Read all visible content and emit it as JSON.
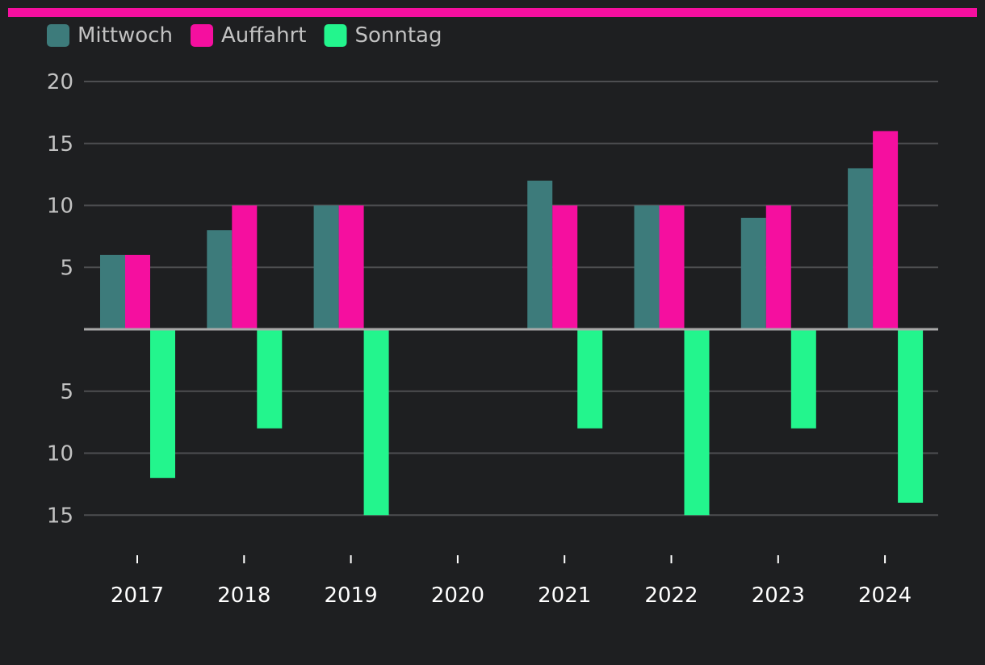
{
  "page": {
    "accent_color": "#f50f9f",
    "background_color": "#1e1f21"
  },
  "chart_data": {
    "type": "bar",
    "title": "",
    "xlabel": "",
    "ylabel": "",
    "categories": [
      "2017",
      "2018",
      "2019",
      "2020",
      "2021",
      "2022",
      "2023",
      "2024"
    ],
    "series": [
      {
        "name": "Mittwoch",
        "color": "#3d7b7b",
        "direction": "up",
        "values": [
          6,
          8,
          10,
          0,
          12,
          10,
          9,
          13
        ]
      },
      {
        "name": "Auffahrt",
        "color": "#f50f9f",
        "direction": "up",
        "values": [
          6,
          10,
          10,
          0,
          10,
          10,
          10,
          16
        ]
      },
      {
        "name": "Sonntag",
        "color": "#23f58d",
        "direction": "down",
        "values": [
          12,
          8,
          15,
          0,
          8,
          15,
          8,
          14
        ]
      }
    ],
    "upper_axis": {
      "range": [
        0,
        20
      ],
      "ticks": [
        5,
        10,
        15,
        20
      ]
    },
    "lower_axis": {
      "range": [
        0,
        15
      ],
      "ticks": [
        5,
        10,
        15
      ]
    },
    "legend_position": "top-left",
    "grid": true
  }
}
